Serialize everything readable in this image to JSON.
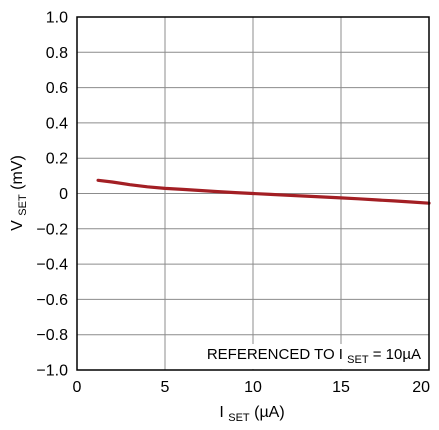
{
  "colors": {
    "background": "#ffffff",
    "grid": "#8c8c8c",
    "frame": "#000000",
    "series": "#a31f24",
    "text": "#000000"
  },
  "chart_data": {
    "type": "line",
    "xlabel": {
      "main": "I",
      "sub": "SET",
      "suffix": " (µA)"
    },
    "ylabel": {
      "main": "V",
      "sub": "SET",
      "suffix": " (mV)"
    },
    "xlim": [
      0,
      20
    ],
    "ylim": [
      -1.0,
      1.0
    ],
    "x_ticks": [
      {
        "value": 0,
        "label": "0"
      },
      {
        "value": 5,
        "label": "5"
      },
      {
        "value": 10,
        "label": "10"
      },
      {
        "value": 15,
        "label": "15"
      },
      {
        "value": 20,
        "label": "20"
      }
    ],
    "y_ticks": [
      {
        "value": 1.0,
        "label": "1.0"
      },
      {
        "value": 0.8,
        "label": "0.8"
      },
      {
        "value": 0.6,
        "label": "0.6"
      },
      {
        "value": 0.4,
        "label": "0.4"
      },
      {
        "value": 0.2,
        "label": "0.2"
      },
      {
        "value": 0,
        "label": "0"
      },
      {
        "value": -0.2,
        "label": "−0.2"
      },
      {
        "value": -0.4,
        "label": "−0.4"
      },
      {
        "value": -0.6,
        "label": "−0.6"
      },
      {
        "value": -0.8,
        "label": "−0.8"
      },
      {
        "value": -1.0,
        "label": "−1.0"
      }
    ],
    "grid": true,
    "annotation": {
      "prefix": "REFERENCED TO I",
      "sub": "SET",
      "suffix": " = 10µA",
      "placement": "bottom-right"
    },
    "series": [
      {
        "x": [
          1.2,
          2,
          3,
          4,
          5,
          6,
          7,
          8,
          9,
          10,
          11,
          12,
          13,
          14,
          15,
          16,
          17,
          18,
          19,
          20
        ],
        "y": [
          0.075,
          0.065,
          0.05,
          0.038,
          0.029,
          0.023,
          0.017,
          0.011,
          0.005,
          0.0,
          -0.005,
          -0.01,
          -0.015,
          -0.02,
          -0.025,
          -0.03,
          -0.036,
          -0.042,
          -0.048,
          -0.055
        ]
      }
    ]
  }
}
